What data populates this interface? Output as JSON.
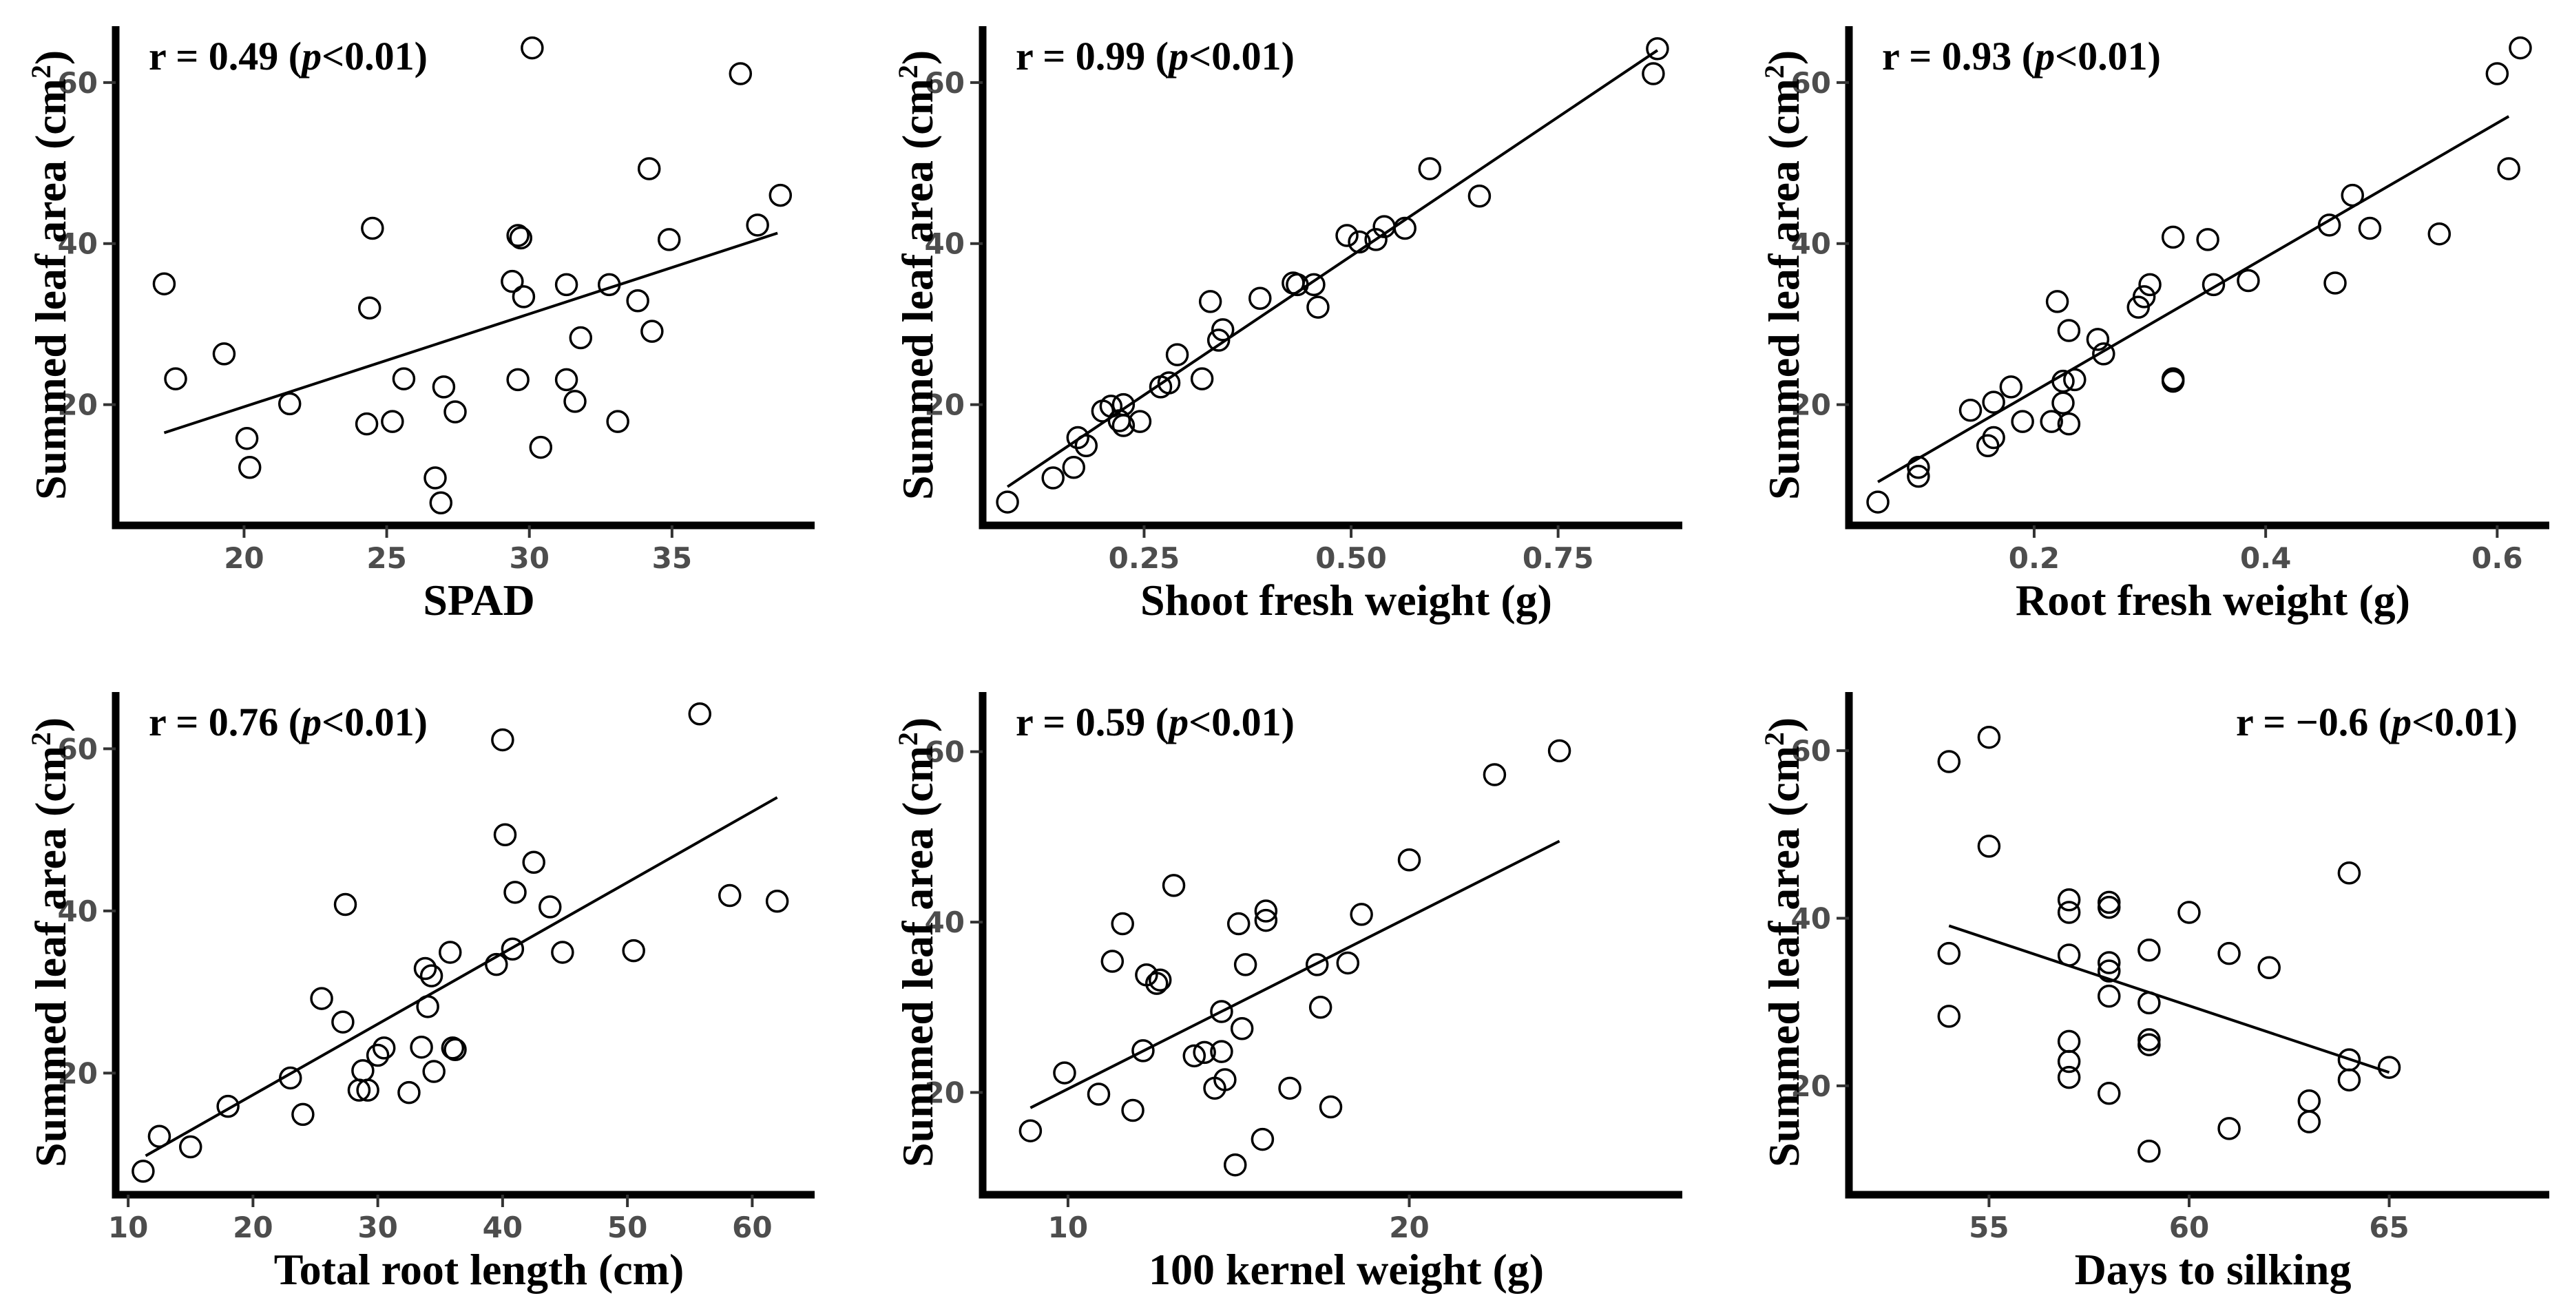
{
  "chart_data": [
    {
      "type": "scatter",
      "title": "",
      "xlabel": "SPAD",
      "ylabel": "Summed leaf area (cm²)",
      "annotation": "r = 0.49 (p<0.01)",
      "annotation_pos": "top-left",
      "xlim": [
        15.5,
        40
      ],
      "ylim": [
        5,
        67
      ],
      "xticks": [
        20,
        25,
        30,
        35
      ],
      "yticks": [
        20,
        40,
        60
      ],
      "regression": {
        "x": [
          17.2,
          38.7
        ],
        "y": [
          16.5,
          41.3
        ]
      },
      "points": [
        {
          "x": 17.2,
          "y": 35
        },
        {
          "x": 17.6,
          "y": 23.2
        },
        {
          "x": 19.3,
          "y": 26.3
        },
        {
          "x": 20.1,
          "y": 15.8
        },
        {
          "x": 20.2,
          "y": 12.2
        },
        {
          "x": 21.6,
          "y": 20.1
        },
        {
          "x": 24.3,
          "y": 17.6
        },
        {
          "x": 24.4,
          "y": 32
        },
        {
          "x": 24.5,
          "y": 41.9
        },
        {
          "x": 25.2,
          "y": 17.9
        },
        {
          "x": 25.6,
          "y": 23.2
        },
        {
          "x": 26.7,
          "y": 10.9
        },
        {
          "x": 26.9,
          "y": 7.8
        },
        {
          "x": 27,
          "y": 22.2
        },
        {
          "x": 27.4,
          "y": 19.1
        },
        {
          "x": 29.4,
          "y": 35.3
        },
        {
          "x": 29.6,
          "y": 41
        },
        {
          "x": 29.7,
          "y": 40.7
        },
        {
          "x": 29.6,
          "y": 23.1
        },
        {
          "x": 29.8,
          "y": 33.4
        },
        {
          "x": 30.1,
          "y": 64.3
        },
        {
          "x": 30.4,
          "y": 14.7
        },
        {
          "x": 31.3,
          "y": 23.1
        },
        {
          "x": 31.3,
          "y": 34.9
        },
        {
          "x": 31.6,
          "y": 20.4
        },
        {
          "x": 31.8,
          "y": 28.3
        },
        {
          "x": 32.8,
          "y": 34.9
        },
        {
          "x": 33.1,
          "y": 17.9
        },
        {
          "x": 33.8,
          "y": 32.9
        },
        {
          "x": 34.2,
          "y": 49.3
        },
        {
          "x": 34.3,
          "y": 29.1
        },
        {
          "x": 34.9,
          "y": 40.5
        },
        {
          "x": 37.4,
          "y": 61.1
        },
        {
          "x": 38,
          "y": 42.3
        },
        {
          "x": 38.8,
          "y": 46
        }
      ]
    },
    {
      "type": "scatter",
      "title": "",
      "xlabel": "Shoot fresh weight (g)",
      "ylabel": "Summed leaf area (cm²)",
      "annotation": "r = 0.99 (p<0.01)",
      "annotation_pos": "top-left",
      "xlim": [
        0.055,
        0.9
      ],
      "ylim": [
        5,
        67
      ],
      "xticks": [
        0.25,
        0.5,
        0.75
      ],
      "ytick_labels": [
        "20",
        "40",
        "60"
      ],
      "xtick_labels": [
        "0.25",
        "0.50",
        "0.75"
      ],
      "yticks": [
        20,
        40,
        60
      ],
      "regression": {
        "x": [
          0.085,
          0.87
        ],
        "y": [
          9.8,
          64
        ]
      },
      "points": [
        {
          "x": 0.085,
          "y": 7.9
        },
        {
          "x": 0.14,
          "y": 10.9
        },
        {
          "x": 0.165,
          "y": 12.2
        },
        {
          "x": 0.17,
          "y": 15.9
        },
        {
          "x": 0.18,
          "y": 14.9
        },
        {
          "x": 0.2,
          "y": 19.2
        },
        {
          "x": 0.21,
          "y": 19.8
        },
        {
          "x": 0.22,
          "y": 18
        },
        {
          "x": 0.225,
          "y": 17.4
        },
        {
          "x": 0.225,
          "y": 20
        },
        {
          "x": 0.245,
          "y": 17.9
        },
        {
          "x": 0.27,
          "y": 22.2
        },
        {
          "x": 0.28,
          "y": 22.7
        },
        {
          "x": 0.29,
          "y": 26.2
        },
        {
          "x": 0.32,
          "y": 23.2
        },
        {
          "x": 0.33,
          "y": 32.8
        },
        {
          "x": 0.34,
          "y": 28
        },
        {
          "x": 0.345,
          "y": 29.3
        },
        {
          "x": 0.39,
          "y": 33.2
        },
        {
          "x": 0.43,
          "y": 35.1
        },
        {
          "x": 0.435,
          "y": 34.9
        },
        {
          "x": 0.455,
          "y": 34.9
        },
        {
          "x": 0.46,
          "y": 32.1
        },
        {
          "x": 0.495,
          "y": 41
        },
        {
          "x": 0.51,
          "y": 40.2
        },
        {
          "x": 0.53,
          "y": 40.5
        },
        {
          "x": 0.54,
          "y": 42.1
        },
        {
          "x": 0.565,
          "y": 41.9
        },
        {
          "x": 0.595,
          "y": 49.3
        },
        {
          "x": 0.655,
          "y": 45.9
        },
        {
          "x": 0.865,
          "y": 61.1
        },
        {
          "x": 0.87,
          "y": 64.2
        }
      ]
    },
    {
      "type": "scatter",
      "title": "",
      "xlabel": "Root fresh weight (g)",
      "ylabel": "Summed leaf area (cm²)",
      "annotation": "r = 0.93 (p<0.01)",
      "annotation_pos": "top-left",
      "xlim": [
        0.04,
        0.645
      ],
      "ylim": [
        5,
        67
      ],
      "xticks": [
        0.2,
        0.4,
        0.6
      ],
      "yticks": [
        20,
        40,
        60
      ],
      "regression": {
        "x": [
          0.065,
          0.61
        ],
        "y": [
          10.4,
          55.8
        ]
      },
      "points": [
        {
          "x": 0.065,
          "y": 7.9
        },
        {
          "x": 0.1,
          "y": 12.2
        },
        {
          "x": 0.1,
          "y": 11.1
        },
        {
          "x": 0.145,
          "y": 19.3
        },
        {
          "x": 0.16,
          "y": 14.9
        },
        {
          "x": 0.165,
          "y": 20.3
        },
        {
          "x": 0.165,
          "y": 15.9
        },
        {
          "x": 0.18,
          "y": 22.2
        },
        {
          "x": 0.19,
          "y": 17.9
        },
        {
          "x": 0.215,
          "y": 17.9
        },
        {
          "x": 0.22,
          "y": 32.8
        },
        {
          "x": 0.225,
          "y": 22.9
        },
        {
          "x": 0.225,
          "y": 20.2
        },
        {
          "x": 0.23,
          "y": 17.6
        },
        {
          "x": 0.23,
          "y": 29.2
        },
        {
          "x": 0.235,
          "y": 23.1
        },
        {
          "x": 0.255,
          "y": 28.1
        },
        {
          "x": 0.26,
          "y": 26.3
        },
        {
          "x": 0.29,
          "y": 32.1
        },
        {
          "x": 0.295,
          "y": 33.4
        },
        {
          "x": 0.3,
          "y": 34.9
        },
        {
          "x": 0.32,
          "y": 22.9
        },
        {
          "x": 0.32,
          "y": 23.2
        },
        {
          "x": 0.32,
          "y": 40.8
        },
        {
          "x": 0.35,
          "y": 40.5
        },
        {
          "x": 0.355,
          "y": 34.9
        },
        {
          "x": 0.385,
          "y": 35.4
        },
        {
          "x": 0.455,
          "y": 42.3
        },
        {
          "x": 0.46,
          "y": 35.1
        },
        {
          "x": 0.475,
          "y": 46
        },
        {
          "x": 0.49,
          "y": 41.9
        },
        {
          "x": 0.55,
          "y": 41.2
        },
        {
          "x": 0.6,
          "y": 61.1
        },
        {
          "x": 0.61,
          "y": 49.3
        },
        {
          "x": 0.62,
          "y": 64.3
        }
      ]
    },
    {
      "type": "scatter",
      "title": "",
      "xlabel": "Total root length (cm)",
      "ylabel": "Summed leaf area (cm²)",
      "annotation": "r = 0.76 (p<0.01)",
      "annotation_pos": "top-left",
      "xlim": [
        9,
        65
      ],
      "ylim": [
        5,
        67
      ],
      "xticks": [
        10,
        20,
        30,
        40,
        50,
        60
      ],
      "yticks": [
        20,
        40,
        60
      ],
      "regression": {
        "x": [
          11.4,
          62
        ],
        "y": [
          9.8,
          54
        ]
      },
      "points": [
        {
          "x": 11.2,
          "y": 7.9
        },
        {
          "x": 12.5,
          "y": 12.2
        },
        {
          "x": 15,
          "y": 10.9
        },
        {
          "x": 18,
          "y": 15.9
        },
        {
          "x": 23,
          "y": 19.4
        },
        {
          "x": 24,
          "y": 14.9
        },
        {
          "x": 25.5,
          "y": 29.2
        },
        {
          "x": 27.2,
          "y": 26.3
        },
        {
          "x": 27.4,
          "y": 40.8
        },
        {
          "x": 28.5,
          "y": 17.9
        },
        {
          "x": 28.8,
          "y": 20.3
        },
        {
          "x": 29.2,
          "y": 17.9
        },
        {
          "x": 30,
          "y": 22.2
        },
        {
          "x": 30.5,
          "y": 23.1
        },
        {
          "x": 32.5,
          "y": 17.6
        },
        {
          "x": 33.5,
          "y": 23.2
        },
        {
          "x": 33.8,
          "y": 32.9
        },
        {
          "x": 34,
          "y": 28.2
        },
        {
          "x": 34.3,
          "y": 32
        },
        {
          "x": 34.5,
          "y": 20.2
        },
        {
          "x": 35.8,
          "y": 34.9
        },
        {
          "x": 36,
          "y": 23.1
        },
        {
          "x": 36.2,
          "y": 22.9
        },
        {
          "x": 39.5,
          "y": 33.4
        },
        {
          "x": 40,
          "y": 61.1
        },
        {
          "x": 40.2,
          "y": 49.4
        },
        {
          "x": 40.8,
          "y": 35.3
        },
        {
          "x": 41,
          "y": 42.3
        },
        {
          "x": 42.5,
          "y": 46
        },
        {
          "x": 43.8,
          "y": 40.5
        },
        {
          "x": 44.8,
          "y": 34.9
        },
        {
          "x": 50.5,
          "y": 35.1
        },
        {
          "x": 55.8,
          "y": 64.3
        },
        {
          "x": 58.2,
          "y": 41.9
        },
        {
          "x": 62,
          "y": 41.2
        }
      ]
    },
    {
      "type": "scatter",
      "title": "",
      "xlabel": "100 kernel weight (g)",
      "ylabel": "Summed leaf area (cm²)",
      "annotation": "r = 0.59 (p<0.01)",
      "annotation_pos": "top-left",
      "xlim": [
        7.5,
        28
      ],
      "ylim": [
        8,
        67
      ],
      "xticks": [
        10,
        20
      ],
      "yticks": [
        20,
        40,
        60
      ],
      "regression": {
        "x": [
          8.9,
          24.4
        ],
        "y": [
          18.2,
          49.5
        ]
      },
      "points": [
        {
          "x": 8.9,
          "y": 15.5
        },
        {
          "x": 9.9,
          "y": 22.3
        },
        {
          "x": 10.9,
          "y": 19.8
        },
        {
          "x": 11.3,
          "y": 35.4
        },
        {
          "x": 11.6,
          "y": 39.8
        },
        {
          "x": 11.9,
          "y": 17.9
        },
        {
          "x": 12.2,
          "y": 24.9
        },
        {
          "x": 12.3,
          "y": 33.8
        },
        {
          "x": 12.7,
          "y": 33.2
        },
        {
          "x": 12.6,
          "y": 32.8
        },
        {
          "x": 13.1,
          "y": 44.3
        },
        {
          "x": 13.7,
          "y": 24.3
        },
        {
          "x": 14,
          "y": 24.7
        },
        {
          "x": 14.3,
          "y": 20.5
        },
        {
          "x": 14.6,
          "y": 21.5
        },
        {
          "x": 14.5,
          "y": 29.5
        },
        {
          "x": 14.5,
          "y": 24.8
        },
        {
          "x": 14.9,
          "y": 11.5
        },
        {
          "x": 15,
          "y": 39.8
        },
        {
          "x": 15.1,
          "y": 27.5
        },
        {
          "x": 15.2,
          "y": 35
        },
        {
          "x": 15.7,
          "y": 14.5
        },
        {
          "x": 15.8,
          "y": 41.3
        },
        {
          "x": 15.8,
          "y": 40.2
        },
        {
          "x": 16.5,
          "y": 20.5
        },
        {
          "x": 17.3,
          "y": 35
        },
        {
          "x": 17.4,
          "y": 30
        },
        {
          "x": 17.7,
          "y": 18.3
        },
        {
          "x": 18.2,
          "y": 35.2
        },
        {
          "x": 18.6,
          "y": 40.9
        },
        {
          "x": 20,
          "y": 47.3
        },
        {
          "x": 22.5,
          "y": 57.3
        },
        {
          "x": 24.4,
          "y": 60.1
        }
      ]
    },
    {
      "type": "scatter",
      "title": "",
      "xlabel": "Days to silking",
      "ylabel": "Summed leaf area (cm²)",
      "annotation": "r = −0.6 (p<0.01)",
      "annotation_pos": "top-right",
      "xlim": [
        51.5,
        69
      ],
      "ylim": [
        7,
        67
      ],
      "xticks": [
        55,
        60,
        65
      ],
      "yticks": [
        20,
        40,
        60
      ],
      "regression": {
        "x": [
          54,
          65
        ],
        "y": [
          39.1,
          21.6
        ]
      },
      "points": [
        {
          "x": 54,
          "y": 58.7
        },
        {
          "x": 54,
          "y": 35.8
        },
        {
          "x": 54,
          "y": 28.3
        },
        {
          "x": 55,
          "y": 61.6
        },
        {
          "x": 55,
          "y": 48.6
        },
        {
          "x": 57,
          "y": 42.2
        },
        {
          "x": 57,
          "y": 40.7
        },
        {
          "x": 57,
          "y": 35.6
        },
        {
          "x": 57,
          "y": 25.3
        },
        {
          "x": 57,
          "y": 22.9
        },
        {
          "x": 57,
          "y": 21
        },
        {
          "x": 58,
          "y": 41.9
        },
        {
          "x": 58,
          "y": 41.3
        },
        {
          "x": 58,
          "y": 34.7
        },
        {
          "x": 58,
          "y": 33.7
        },
        {
          "x": 58,
          "y": 30.7
        },
        {
          "x": 58,
          "y": 19.1
        },
        {
          "x": 59,
          "y": 36.2
        },
        {
          "x": 59,
          "y": 29.9
        },
        {
          "x": 59,
          "y": 25.5
        },
        {
          "x": 59,
          "y": 24.9
        },
        {
          "x": 59,
          "y": 12.2
        },
        {
          "x": 60,
          "y": 40.7
        },
        {
          "x": 61,
          "y": 35.8
        },
        {
          "x": 61,
          "y": 14.9
        },
        {
          "x": 62,
          "y": 34.1
        },
        {
          "x": 63,
          "y": 18.2
        },
        {
          "x": 63,
          "y": 15.7
        },
        {
          "x": 64,
          "y": 45.4
        },
        {
          "x": 64,
          "y": 23.1
        },
        {
          "x": 64,
          "y": 20.7
        },
        {
          "x": 65,
          "y": 22.2
        }
      ]
    }
  ]
}
